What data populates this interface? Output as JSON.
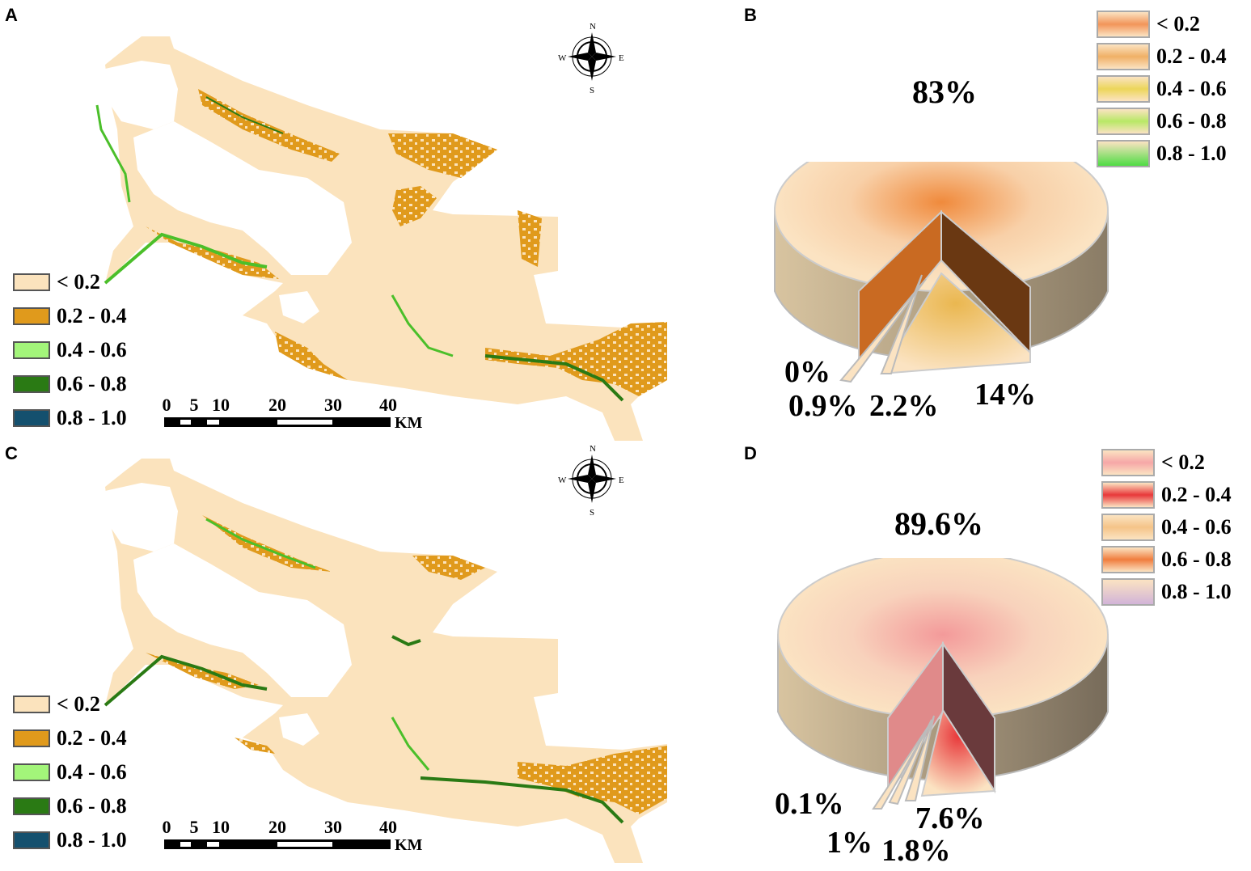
{
  "panels": [
    {
      "label": "A"
    },
    {
      "label": "B"
    },
    {
      "label": "C"
    },
    {
      "label": "D"
    }
  ],
  "map_legend": {
    "items": [
      {
        "label": "< 0.2",
        "color": "#fbe3bd"
      },
      {
        "label": "0.2 - 0.4",
        "color": "#e09a1c"
      },
      {
        "label": "0.4 - 0.6",
        "color": "#a3f57a"
      },
      {
        "label": "0.6 - 0.8",
        "color": "#2a7a14"
      },
      {
        "label": "0.8 - 1.0",
        "color": "#14506e"
      }
    ]
  },
  "scale_bar": {
    "ticks": [
      "0",
      "5",
      "10",
      "20",
      "30",
      "40"
    ],
    "unit": "KM"
  },
  "compass": {
    "n": "N",
    "s": "S",
    "e": "E",
    "w": "W"
  },
  "pie_b": {
    "legend": [
      {
        "label": "< 0.2",
        "color": "#f2955a"
      },
      {
        "label": "0.2 - 0.4",
        "color": "#f0b066"
      },
      {
        "label": "0.4 - 0.6",
        "color": "#ecd65a"
      },
      {
        "label": "0.6 - 0.8",
        "color": "#b8e866"
      },
      {
        "label": "0.8 - 1.0",
        "color": "#4fdc44"
      }
    ],
    "labels": {
      "main": "83%",
      "a": "0%",
      "b": "0.9%",
      "c": "2.2%",
      "d": "14%"
    }
  },
  "pie_d": {
    "legend": [
      {
        "label": "< 0.2",
        "color": "#f6a7a7"
      },
      {
        "label": "0.2 - 0.4",
        "color": "#e8383a"
      },
      {
        "label": "0.4 - 0.6",
        "color": "#f5c488"
      },
      {
        "label": "0.6 - 0.8",
        "color": "#f07d3e"
      },
      {
        "label": "0.8 - 1.0",
        "color": "#d2b4d8"
      }
    ],
    "labels": {
      "main": "89.6%",
      "a": "0.1%",
      "b": "1%",
      "c": "1.8%",
      "d": "7.6%"
    }
  },
  "chart_data": [
    {
      "type": "pie",
      "categories": [
        "< 0.2",
        "0.2 - 0.4",
        "0.4 - 0.6",
        "0.6 - 0.8",
        "0.8 - 1.0"
      ],
      "values": [
        83,
        14,
        2.2,
        0.9,
        0
      ]
    },
    {
      "type": "pie",
      "categories": [
        "< 0.2",
        "0.2 - 0.4",
        "0.4 - 0.6",
        "0.6 - 0.8",
        "0.8 - 1.0"
      ],
      "values": [
        89.6,
        7.6,
        1.8,
        1,
        0.1
      ]
    }
  ]
}
